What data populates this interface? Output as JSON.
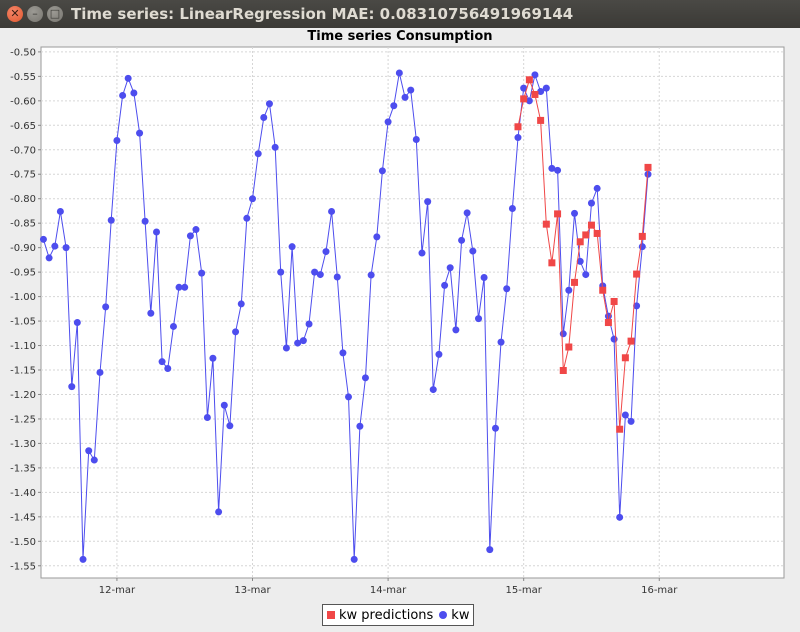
{
  "window": {
    "title": "Time series: LinearRegression MAE: 0.08310756491969144",
    "close_glyph": "✕",
    "min_glyph": "–",
    "max_glyph": "□"
  },
  "chart_data": {
    "type": "line",
    "title": "Time series Consumption",
    "xlabel": "",
    "ylabel": "",
    "x_ticks": [
      "12-mar",
      "13-mar",
      "14-mar",
      "15-mar",
      "16-mar"
    ],
    "x_tick_days": [
      12,
      13,
      14,
      15,
      16
    ],
    "xlim": [
      11.44,
      16.92
    ],
    "ylim": [
      -1.575,
      -0.49
    ],
    "y_ticks": [
      -0.5,
      -0.55,
      -0.6,
      -0.65,
      -0.7,
      -0.75,
      -0.8,
      -0.85,
      -0.9,
      -0.95,
      -1.0,
      -1.05,
      -1.1,
      -1.15,
      -1.2,
      -1.25,
      -1.3,
      -1.35,
      -1.4,
      -1.45,
      -1.5,
      -1.55
    ],
    "y_tick_labels": [
      "-0.50",
      "-0.55",
      "-0.60",
      "-0.65",
      "-0.70",
      "-0.75",
      "-0.80",
      "-0.85",
      "-0.90",
      "-0.95",
      "-1.00",
      "-1.05",
      "-1.10",
      "-1.15",
      "-1.20",
      "-1.25",
      "-1.30",
      "-1.35",
      "-1.40",
      "-1.45",
      "-1.50",
      "-1.55"
    ],
    "grid": true,
    "legend_position": "bottom-center",
    "series": [
      {
        "name": "kw predictions",
        "color": "#f04747",
        "marker": "square",
        "x": [
          14.958,
          15.0,
          15.042,
          15.083,
          15.125,
          15.167,
          15.208,
          15.25,
          15.292,
          15.333,
          15.375,
          15.417,
          15.458,
          15.5,
          15.542,
          15.583,
          15.625,
          15.667,
          15.708,
          15.75,
          15.792,
          15.833,
          15.875,
          15.917
        ],
        "y": [
          -0.653,
          -0.596,
          -0.557,
          -0.587,
          -0.64,
          -0.852,
          -0.931,
          -0.831,
          -1.151,
          -1.103,
          -0.971,
          -0.888,
          -0.874,
          -0.854,
          -0.871,
          -0.987,
          -1.053,
          -1.01,
          -1.271,
          -1.125,
          -1.091,
          -0.954,
          -0.877,
          -0.736
        ]
      },
      {
        "name": "kw",
        "color": "#4d4dee",
        "marker": "circle",
        "x": [
          11.458,
          11.5,
          11.542,
          11.583,
          11.625,
          11.667,
          11.708,
          11.75,
          11.792,
          11.833,
          11.875,
          11.917,
          11.958,
          12.0,
          12.042,
          12.083,
          12.125,
          12.167,
          12.208,
          12.25,
          12.292,
          12.333,
          12.375,
          12.417,
          12.458,
          12.5,
          12.542,
          12.583,
          12.625,
          12.667,
          12.708,
          12.75,
          12.792,
          12.833,
          12.875,
          12.917,
          12.958,
          13.0,
          13.042,
          13.083,
          13.125,
          13.167,
          13.208,
          13.25,
          13.292,
          13.333,
          13.375,
          13.417,
          13.458,
          13.5,
          13.542,
          13.583,
          13.625,
          13.667,
          13.708,
          13.75,
          13.792,
          13.833,
          13.875,
          13.917,
          13.958,
          14.0,
          14.042,
          14.083,
          14.125,
          14.167,
          14.208,
          14.25,
          14.292,
          14.333,
          14.375,
          14.417,
          14.458,
          14.5,
          14.542,
          14.583,
          14.625,
          14.667,
          14.708,
          14.75,
          14.792,
          14.833,
          14.875,
          14.917,
          14.958,
          15.0,
          15.042,
          15.083,
          15.125,
          15.167,
          15.208,
          15.25,
          15.292,
          15.333,
          15.375,
          15.417,
          15.458,
          15.5,
          15.542,
          15.583,
          15.625,
          15.667,
          15.708,
          15.75,
          15.792,
          15.833,
          15.875,
          15.917
        ],
        "y": [
          -0.883,
          -0.921,
          -0.897,
          -0.826,
          -0.9,
          -1.184,
          -1.053,
          -1.537,
          -1.315,
          -1.334,
          -1.155,
          -1.021,
          -0.844,
          -0.681,
          -0.589,
          -0.554,
          -0.584,
          -0.666,
          -0.846,
          -1.034,
          -0.868,
          -1.133,
          -1.147,
          -1.061,
          -0.981,
          -0.981,
          -0.876,
          -0.863,
          -0.952,
          -1.247,
          -1.126,
          -1.44,
          -1.222,
          -1.264,
          -1.072,
          -1.015,
          -0.84,
          -0.8,
          -0.708,
          -0.634,
          -0.606,
          -0.695,
          -0.95,
          -1.105,
          -0.898,
          -1.095,
          -1.09,
          -1.056,
          -0.95,
          -0.955,
          -0.908,
          -0.826,
          -0.96,
          -1.115,
          -1.205,
          -1.537,
          -1.265,
          -1.166,
          -0.956,
          -0.878,
          -0.743,
          -0.643,
          -0.61,
          -0.543,
          -0.593,
          -0.578,
          -0.679,
          -0.911,
          -0.806,
          -1.19,
          -1.118,
          -0.977,
          -0.941,
          -1.068,
          -0.885,
          -0.829,
          -0.907,
          -1.045,
          -0.961,
          -1.517,
          -1.269,
          -1.093,
          -0.984,
          -0.82,
          -0.675,
          -0.574,
          -0.6,
          -0.547,
          -0.581,
          -0.574,
          -0.738,
          -0.742,
          -1.076,
          -0.987,
          -0.83,
          -0.928,
          -0.955,
          -0.809,
          -0.779,
          -0.978,
          -1.04,
          -1.087,
          -1.451,
          -1.242,
          -1.255,
          -1.019,
          -0.898,
          -0.75
        ]
      }
    ]
  }
}
